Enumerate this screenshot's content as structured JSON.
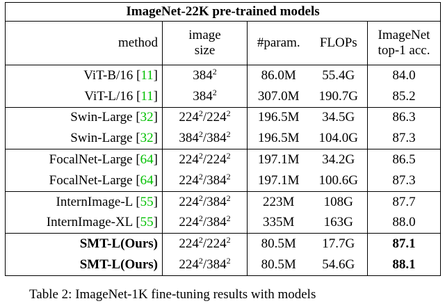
{
  "table": {
    "title": "ImageNet-22K pre-trained models",
    "header": [
      [
        "method"
      ],
      [
        "image",
        "size"
      ],
      [
        "#param."
      ],
      [
        "FLOPs"
      ],
      [
        "ImageNet",
        "top-1 acc."
      ]
    ],
    "groups": [
      {
        "rows": [
          {
            "method": [
              "ViT-B/16 [",
              "11",
              "]"
            ],
            "size": [
              {
                "t": "384",
                "sup": "2"
              }
            ],
            "params": "86.0M",
            "flops": "55.4G",
            "acc": "84.0"
          },
          {
            "method": [
              "ViT-L/16 [",
              "11",
              "]"
            ],
            "size": [
              {
                "t": "384",
                "sup": "2"
              }
            ],
            "params": "307.0M",
            "flops": "190.7G",
            "acc": "85.2"
          }
        ]
      },
      {
        "rows": [
          {
            "method": [
              "Swin-Large [",
              "32",
              "]"
            ],
            "size": [
              {
                "t": "224",
                "sup": "2"
              },
              {
                "t": "/224",
                "sup": "2"
              }
            ],
            "params": "196.5M",
            "flops": "34.5G",
            "acc": "86.3"
          },
          {
            "method": [
              "Swin-Large [",
              "32",
              "]"
            ],
            "size": [
              {
                "t": "384",
                "sup": "2"
              },
              {
                "t": "/384",
                "sup": "2"
              }
            ],
            "params": "196.5M",
            "flops": "104.0G",
            "acc": "87.3"
          }
        ]
      },
      {
        "rows": [
          {
            "method": [
              "FocalNet-Large [",
              "64",
              "]"
            ],
            "size": [
              {
                "t": "224",
                "sup": "2"
              },
              {
                "t": "/224",
                "sup": "2"
              }
            ],
            "params": "197.1M",
            "flops": "34.2G",
            "acc": "86.5"
          },
          {
            "method": [
              "FocalNet-Large [",
              "64",
              "]"
            ],
            "size": [
              {
                "t": "224",
                "sup": "2"
              },
              {
                "t": "/384",
                "sup": "2"
              }
            ],
            "params": "197.1M",
            "flops": "100.6G",
            "acc": "87.3"
          }
        ]
      },
      {
        "rows": [
          {
            "method": [
              "InternImage-L [",
              "55",
              "]"
            ],
            "size": [
              {
                "t": "224",
                "sup": "2"
              },
              {
                "t": "/384",
                "sup": "2"
              }
            ],
            "params": "223M",
            "flops": "108G",
            "acc": "87.7"
          },
          {
            "method": [
              "InternImage-XL [",
              "55",
              "]"
            ],
            "size": [
              {
                "t": "224",
                "sup": "2"
              },
              {
                "t": "/384",
                "sup": "2"
              }
            ],
            "params": "335M",
            "flops": "163G",
            "acc": "88.0"
          }
        ]
      },
      {
        "rows": [
          {
            "method": [
              "SMT-L(Ours)"
            ],
            "size": [
              {
                "t": "224",
                "sup": "2"
              },
              {
                "t": "/224",
                "sup": "2"
              }
            ],
            "params": "80.5M",
            "flops": "17.7G",
            "acc": "87.1",
            "bold": true
          },
          {
            "method": [
              "SMT-L(Ours)"
            ],
            "size": [
              {
                "t": "224",
                "sup": "2"
              },
              {
                "t": "/384",
                "sup": "2"
              }
            ],
            "params": "80.5M",
            "flops": "54.6G",
            "acc": "88.1",
            "bold": true
          }
        ]
      }
    ]
  },
  "caption": "Table 2: ImageNet-1K fine-tuning results with models"
}
